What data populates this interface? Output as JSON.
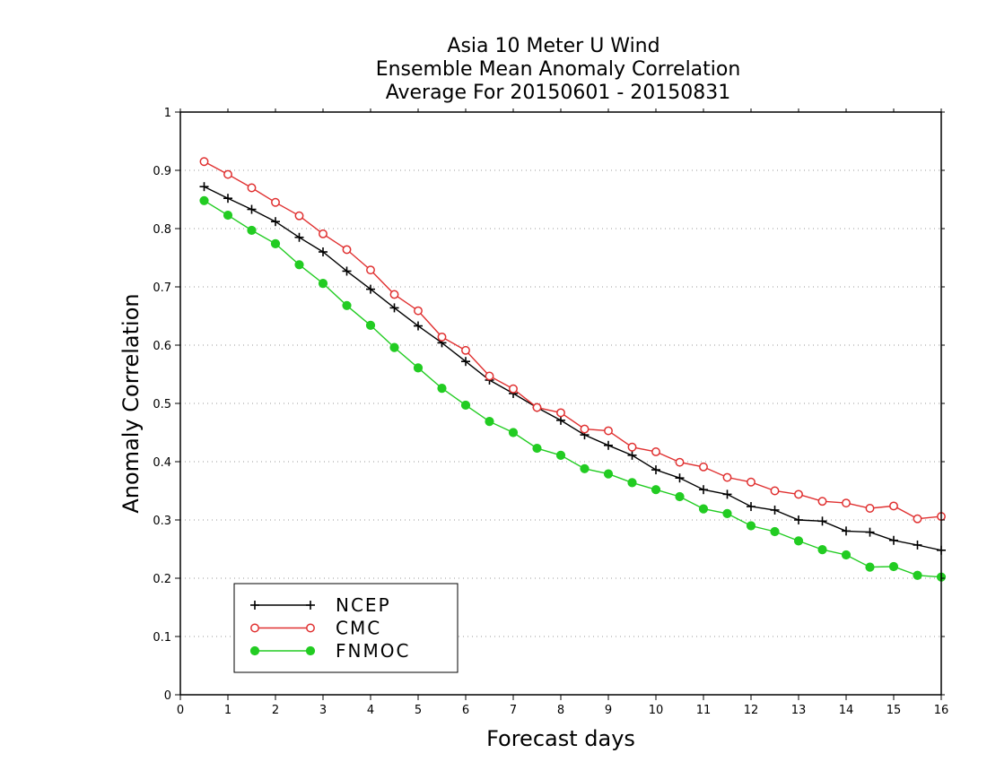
{
  "chart_data": {
    "type": "line",
    "title_lines": [
      "Asia 10 Meter U Wind",
      "Ensemble Mean Anomaly Correlation",
      "Average For 20150601 - 20150831"
    ],
    "xlabel": "Forecast days",
    "ylabel": "Anomaly Correlation",
    "xlim": [
      0,
      16
    ],
    "ylim": [
      0,
      1
    ],
    "x_ticks": [
      0,
      1,
      2,
      3,
      4,
      5,
      6,
      7,
      8,
      9,
      10,
      11,
      12,
      13,
      14,
      15,
      16
    ],
    "y_ticks": [
      0,
      0.1,
      0.2,
      0.3,
      0.4,
      0.5,
      0.6,
      0.7,
      0.8,
      0.9,
      1
    ],
    "x_tick_labels": [
      "0",
      "1",
      "2",
      "3",
      "4",
      "5",
      "6",
      "7",
      "8",
      "9",
      "10",
      "11",
      "12",
      "13",
      "14",
      "15",
      "16"
    ],
    "y_tick_labels": [
      "0",
      "0.1",
      "0.2",
      "0.3",
      "0.4",
      "0.5",
      "0.6",
      "0.7",
      "0.8",
      "0.9",
      "1"
    ],
    "grid": "horizontal dotted",
    "legend_position": "bottom-left",
    "x": [
      0.5,
      1,
      1.5,
      2,
      2.5,
      3,
      3.5,
      4,
      4.5,
      5,
      5.5,
      6,
      6.5,
      7,
      7.5,
      8,
      8.5,
      9,
      9.5,
      10,
      10.5,
      11,
      11.5,
      12,
      12.5,
      13,
      13.5,
      14,
      14.5,
      15,
      15.5,
      16
    ],
    "series": [
      {
        "name": "NCEP",
        "color": "#000000",
        "marker": "plus",
        "values": [
          0.872,
          0.852,
          0.833,
          0.812,
          0.785,
          0.76,
          0.727,
          0.696,
          0.664,
          0.633,
          0.604,
          0.572,
          0.54,
          0.517,
          0.493,
          0.471,
          0.446,
          0.428,
          0.411,
          0.386,
          0.372,
          0.352,
          0.344,
          0.323,
          0.317,
          0.3,
          0.298,
          0.281,
          0.279,
          0.265,
          0.257,
          0.248
        ]
      },
      {
        "name": "CMC",
        "color": "#e03030",
        "marker": "open-circle",
        "values": [
          0.915,
          0.893,
          0.87,
          0.845,
          0.822,
          0.791,
          0.764,
          0.729,
          0.687,
          0.659,
          0.614,
          0.591,
          0.547,
          0.525,
          0.493,
          0.484,
          0.456,
          0.453,
          0.425,
          0.417,
          0.399,
          0.391,
          0.373,
          0.365,
          0.35,
          0.344,
          0.332,
          0.329,
          0.32,
          0.324,
          0.302,
          0.306
        ]
      },
      {
        "name": "FNMOC",
        "color": "#22cc22",
        "marker": "filled-circle",
        "values": [
          0.848,
          0.823,
          0.797,
          0.774,
          0.738,
          0.706,
          0.668,
          0.634,
          0.596,
          0.561,
          0.526,
          0.497,
          0.469,
          0.45,
          0.423,
          0.411,
          0.388,
          0.379,
          0.364,
          0.352,
          0.34,
          0.319,
          0.311,
          0.29,
          0.28,
          0.264,
          0.249,
          0.24,
          0.219,
          0.22,
          0.205,
          0.202
        ]
      }
    ]
  }
}
